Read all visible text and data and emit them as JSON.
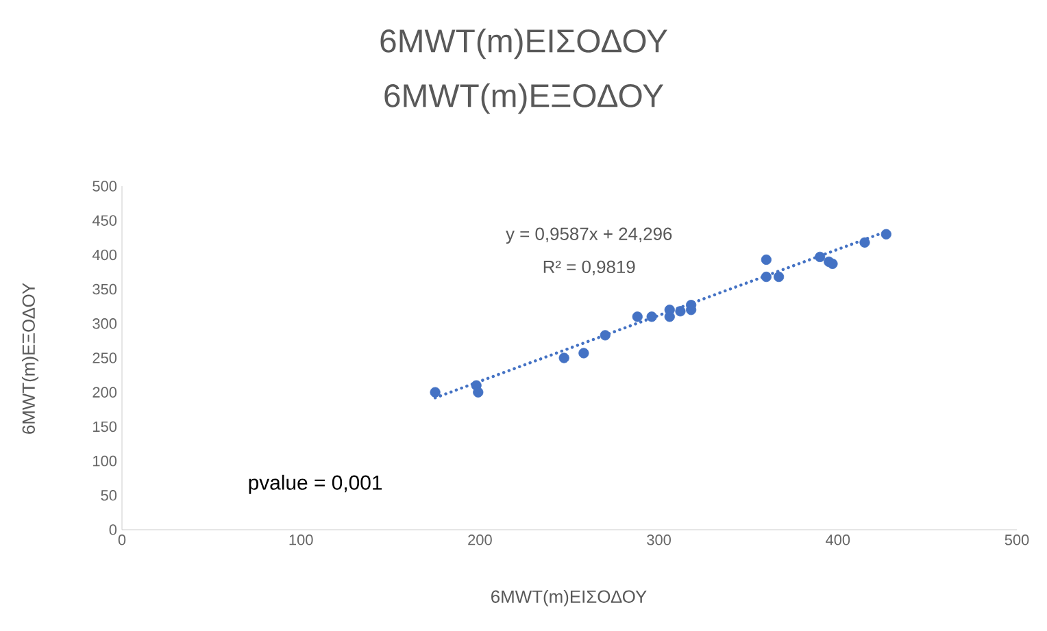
{
  "chart_data": {
    "type": "scatter",
    "title": "6MWT(m)ΕΙΣΟΔΟΥ",
    "subtitle": "6MWT(m)ΕΞΟΔΟΥ",
    "xlabel": "6MWT(m)ΕΙΣΟΔΟΥ",
    "ylabel": "6MWT(m)ΕΞΟΔΟΥ",
    "annotations": [
      "y = 0,9587x + 24,296",
      "R² = 0,9819",
      "pvalue = 0,001"
    ],
    "xlim": [
      0,
      500
    ],
    "ylim": [
      0,
      500
    ],
    "xticks": [
      0,
      100,
      200,
      300,
      400,
      500
    ],
    "yticks": [
      0,
      50,
      100,
      150,
      200,
      250,
      300,
      350,
      400,
      450,
      500
    ],
    "grid": false,
    "marker": "circle",
    "series": [
      {
        "color": "#4472c4",
        "x": [
          175,
          198,
          199,
          247,
          258,
          270,
          288,
          296,
          306,
          306,
          312,
          318,
          318,
          360,
          360,
          367,
          390,
          395,
          397,
          415,
          427
        ],
        "values": [
          200,
          210,
          200,
          250,
          257,
          283,
          310,
          310,
          310,
          320,
          318,
          320,
          327,
          393,
          368,
          368,
          397,
          390,
          387,
          418,
          430
        ]
      },
      {
        "type": "line",
        "color": "#4472c4",
        "line_style": "dotted",
        "marker": "none",
        "x": [
          175,
          427
        ],
        "values": [
          192,
          434
        ]
      }
    ]
  }
}
